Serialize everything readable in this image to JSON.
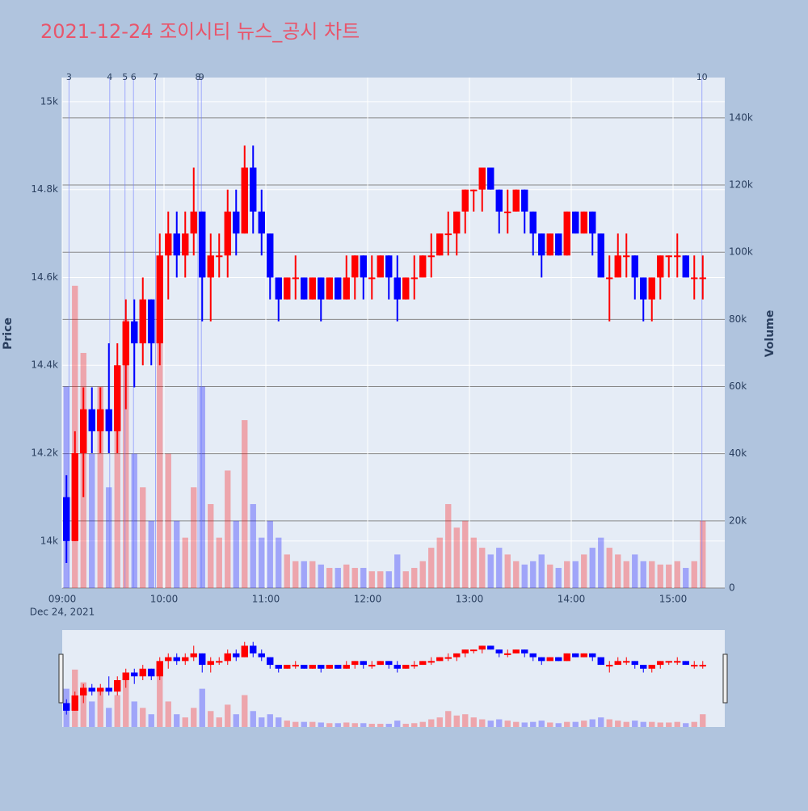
{
  "chart_data": {
    "type": "candlestick",
    "title": "2021-12-24 조이시티 뉴스_공시 차트",
    "x_date_label": "Dec 24, 2021",
    "ylabel": "Price",
    "y2label": "Volume",
    "up_color": "#ff0000",
    "down_color": "#0000ff",
    "xlim": [
      "09:00",
      "15:30"
    ],
    "xticks": [
      "09:00",
      "10:00",
      "11:00",
      "12:00",
      "13:00",
      "14:00",
      "15:00"
    ],
    "ylim": [
      13893,
      15055
    ],
    "yticks": [
      {
        "value": 14000,
        "label": "14k"
      },
      {
        "value": 14200,
        "label": "14.2k"
      },
      {
        "value": 14400,
        "label": "14.4k"
      },
      {
        "value": 14600,
        "label": "14.6k"
      },
      {
        "value": 14800,
        "label": "14.8k"
      },
      {
        "value": 15000,
        "label": "15k"
      }
    ],
    "y2lim": [
      0,
      152000
    ],
    "y2ticks": [
      0,
      {
        "value": 20000,
        "label": "20k"
      },
      {
        "value": 40000,
        "label": "40k"
      },
      {
        "value": 60000,
        "label": "60k"
      },
      {
        "value": 80000,
        "label": "80k"
      },
      {
        "value": 100000,
        "label": "100k"
      },
      {
        "value": 120000,
        "label": "120k"
      },
      {
        "value": 140000,
        "label": "140k"
      }
    ],
    "news": [
      {
        "time": "09:04",
        "label": "3"
      },
      {
        "time": "09:28",
        "label": "4"
      },
      {
        "time": "09:37",
        "label": "5"
      },
      {
        "time": "09:42",
        "label": "6"
      },
      {
        "time": "09:55",
        "label": "7"
      },
      {
        "time": "10:20",
        "label": "8"
      },
      {
        "time": "10:22",
        "label": "9"
      },
      {
        "time": "15:17",
        "label": "10"
      }
    ],
    "x": [
      "09:00",
      "09:05",
      "09:10",
      "09:15",
      "09:20",
      "09:25",
      "09:30",
      "09:35",
      "09:40",
      "09:45",
      "09:50",
      "09:55",
      "10:00",
      "10:05",
      "10:10",
      "10:15",
      "10:20",
      "10:25",
      "10:30",
      "10:35",
      "10:40",
      "10:45",
      "10:50",
      "10:55",
      "11:00",
      "11:05",
      "11:10",
      "11:15",
      "11:20",
      "11:25",
      "11:30",
      "11:35",
      "11:40",
      "11:45",
      "11:50",
      "11:55",
      "12:00",
      "12:05",
      "12:10",
      "12:15",
      "12:20",
      "12:25",
      "12:30",
      "12:35",
      "12:40",
      "12:45",
      "12:50",
      "12:55",
      "13:00",
      "13:05",
      "13:10",
      "13:15",
      "13:20",
      "13:25",
      "13:30",
      "13:35",
      "13:40",
      "13:45",
      "13:50",
      "13:55",
      "14:00",
      "14:05",
      "14:10",
      "14:15",
      "14:20",
      "14:25",
      "14:30",
      "14:35",
      "14:40",
      "14:45",
      "14:50",
      "14:55",
      "15:00",
      "15:05",
      "15:10",
      "15:15"
    ],
    "open": [
      14100,
      14000,
      14200,
      14300,
      14250,
      14300,
      14250,
      14400,
      14500,
      14450,
      14550,
      14450,
      14650,
      14700,
      14650,
      14700,
      14750,
      14600,
      14650,
      14650,
      14750,
      14700,
      14850,
      14750,
      14700,
      14600,
      14550,
      14600,
      14600,
      14550,
      14600,
      14550,
      14600,
      14550,
      14600,
      14650,
      14600,
      14600,
      14650,
      14600,
      14550,
      14600,
      14600,
      14650,
      14650,
      14700,
      14700,
      14750,
      14800,
      14800,
      14850,
      14800,
      14750,
      14750,
      14800,
      14750,
      14700,
      14650,
      14700,
      14650,
      14750,
      14700,
      14750,
      14700,
      14600,
      14600,
      14650,
      14650,
      14600,
      14550,
      14600,
      14650,
      14650,
      14650,
      14600,
      14600
    ],
    "high": [
      14150,
      14250,
      14350,
      14350,
      14350,
      14450,
      14450,
      14550,
      14550,
      14600,
      14550,
      14700,
      14750,
      14750,
      14750,
      14850,
      14750,
      14700,
      14700,
      14800,
      14800,
      14900,
      14900,
      14800,
      14700,
      14600,
      14600,
      14650,
      14600,
      14600,
      14600,
      14600,
      14600,
      14650,
      14650,
      14650,
      14650,
      14650,
      14650,
      14650,
      14600,
      14650,
      14650,
      14700,
      14700,
      14750,
      14750,
      14800,
      14800,
      14850,
      14850,
      14800,
      14800,
      14800,
      14800,
      14750,
      14700,
      14700,
      14700,
      14750,
      14750,
      14750,
      14750,
      14700,
      14650,
      14700,
      14700,
      14650,
      14600,
      14600,
      14650,
      14650,
      14700,
      14650,
      14650,
      14650
    ],
    "low": [
      13950,
      14000,
      14100,
      14200,
      14200,
      14200,
      14200,
      14300,
      14350,
      14400,
      14400,
      14400,
      14550,
      14600,
      14600,
      14650,
      14500,
      14500,
      14600,
      14600,
      14650,
      14700,
      14700,
      14650,
      14550,
      14500,
      14550,
      14550,
      14550,
      14550,
      14500,
      14550,
      14550,
      14550,
      14550,
      14550,
      14550,
      14600,
      14550,
      14500,
      14550,
      14550,
      14600,
      14600,
      14650,
      14650,
      14650,
      14700,
      14750,
      14750,
      14800,
      14700,
      14700,
      14750,
      14700,
      14650,
      14600,
      14650,
      14650,
      14650,
      14700,
      14700,
      14650,
      14600,
      14500,
      14600,
      14600,
      14550,
      14500,
      14500,
      14550,
      14600,
      14600,
      14600,
      14550,
      14550
    ],
    "close": [
      14000,
      14200,
      14300,
      14250,
      14300,
      14250,
      14400,
      14500,
      14450,
      14550,
      14450,
      14650,
      14700,
      14650,
      14700,
      14750,
      14600,
      14650,
      14650,
      14750,
      14700,
      14850,
      14750,
      14700,
      14600,
      14550,
      14600,
      14600,
      14550,
      14600,
      14550,
      14600,
      14550,
      14600,
      14650,
      14600,
      14600,
      14650,
      14600,
      14550,
      14600,
      14600,
      14650,
      14650,
      14700,
      14700,
      14750,
      14800,
      14800,
      14850,
      14800,
      14750,
      14750,
      14800,
      14750,
      14700,
      14650,
      14700,
      14650,
      14750,
      14700,
      14750,
      14700,
      14600,
      14600,
      14650,
      14650,
      14600,
      14550,
      14600,
      14650,
      14650,
      14650,
      14600,
      14600,
      14600
    ],
    "volume": [
      60000,
      90000,
      70000,
      40000,
      60000,
      30000,
      50000,
      80000,
      40000,
      30000,
      20000,
      90000,
      40000,
      20000,
      15000,
      30000,
      60000,
      25000,
      15000,
      35000,
      20000,
      50000,
      25000,
      15000,
      20000,
      15000,
      10000,
      8000,
      8000,
      8000,
      7000,
      6000,
      6000,
      7000,
      6000,
      6000,
      5000,
      5000,
      5000,
      10000,
      5000,
      6000,
      8000,
      12000,
      15000,
      25000,
      18000,
      20000,
      15000,
      12000,
      10000,
      12000,
      10000,
      8000,
      7000,
      8000,
      10000,
      7000,
      6000,
      8000,
      8000,
      10000,
      12000,
      15000,
      12000,
      10000,
      8000,
      10000,
      8000,
      8000,
      7000,
      7000,
      8000,
      6000,
      8000,
      20000
    ]
  }
}
